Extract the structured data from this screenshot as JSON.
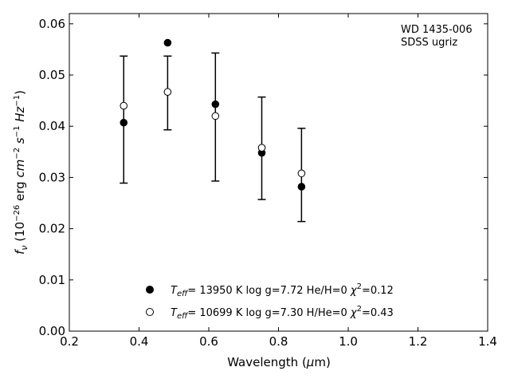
{
  "chart_data": {
    "type": "scatter",
    "xlabel": "Wavelength (μm)",
    "ylabel": "fν (10⁻²⁶ erg cm⁻² s⁻¹ Hz⁻¹)",
    "xlim": [
      0.2,
      1.4
    ],
    "ylim": [
      0.0,
      0.062
    ],
    "x_ticks": [
      "0.2",
      "0.4",
      "0.6",
      "0.8",
      "1.0",
      "1.2",
      "1.4"
    ],
    "y_ticks": [
      "0.00",
      "0.01",
      "0.02",
      "0.03",
      "0.04",
      "0.05",
      "0.06"
    ],
    "annotation": [
      "WD 1435-006",
      "SDSS ugriz"
    ],
    "legend_position": "bottom-center",
    "grid": false,
    "observed_errorbars": {
      "x": [
        0.356,
        0.482,
        0.619,
        0.752,
        0.866
      ],
      "y": [
        0.0413,
        0.0465,
        0.0418,
        0.0357,
        0.0305
      ],
      "yerr": [
        0.0124,
        0.0072,
        0.0125,
        0.01,
        0.0091
      ]
    },
    "series": [
      {
        "name": "Teff= 13950 K  log g=7.72  He/H=0  χ²=0.12",
        "marker": "filled",
        "x": [
          0.356,
          0.482,
          0.619,
          0.752,
          0.866
        ],
        "y": [
          0.0407,
          0.0563,
          0.0443,
          0.0348,
          0.0282
        ]
      },
      {
        "name": "Teff= 10699 K  log g=7.30  H/He=0  χ²=0.43",
        "marker": "open",
        "x": [
          0.356,
          0.482,
          0.619,
          0.752,
          0.866
        ],
        "y": [
          0.044,
          0.0467,
          0.042,
          0.0358,
          0.0308
        ]
      }
    ],
    "colors": {
      "marker": "#000000",
      "open_fill": "#ffffff"
    }
  }
}
